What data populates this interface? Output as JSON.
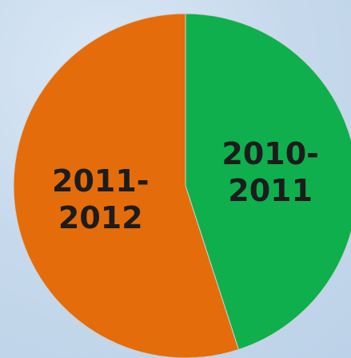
{
  "chart_data": {
    "type": "pie",
    "categories": [
      "2010-2011",
      "2011-2012"
    ],
    "values": [
      45,
      55
    ],
    "colors": [
      "#0faf4e",
      "#e46c0a"
    ]
  }
}
